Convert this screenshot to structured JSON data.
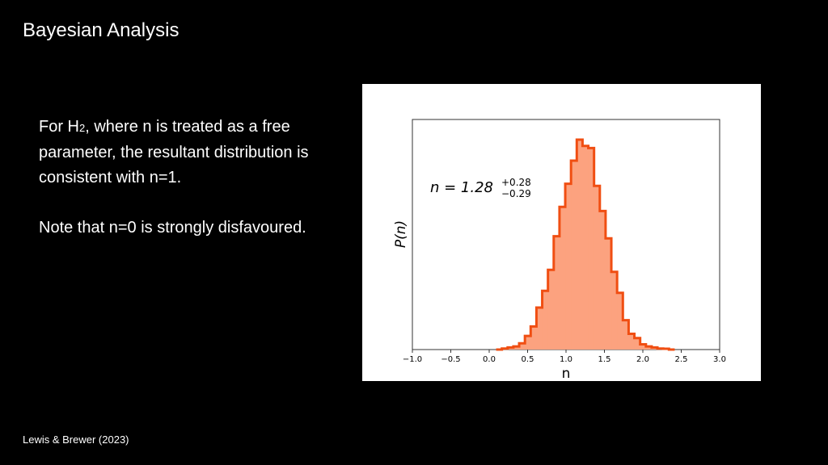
{
  "slide": {
    "title": "Bayesian Analysis",
    "paragraph1_pre": "For H",
    "paragraph1_sub": "2",
    "paragraph1_post": ", where n is treated as a free parameter, the resultant distribution is consistent with n=1.",
    "paragraph2": "Note that n=0 is strongly disfavoured.",
    "citation": "Lewis & Brewer (2023)"
  },
  "colors": {
    "fill": "#FCA27F",
    "stroke": "#F04E12"
  },
  "chart_data": {
    "type": "histogram",
    "xlabel": "n",
    "ylabel": "P(n)",
    "xlim": [
      -1.0,
      3.0
    ],
    "xticks": [
      "−1.0",
      "−0.5",
      "0.0",
      "0.5",
      "1.0",
      "1.5",
      "2.0",
      "2.5",
      "3.0"
    ],
    "xtick_values": [
      -1.0,
      -0.5,
      0.0,
      0.5,
      1.0,
      1.5,
      2.0,
      2.5,
      3.0
    ],
    "annotation": {
      "prefix": "n = 1.28",
      "upper": "+0.28",
      "lower": "−0.29"
    },
    "bin_width": 0.075,
    "bin_starts": [
      0.09,
      0.165,
      0.24,
      0.315,
      0.39,
      0.465,
      0.54,
      0.615,
      0.69,
      0.765,
      0.84,
      0.915,
      0.99,
      1.065,
      1.14,
      1.215,
      1.29,
      1.365,
      1.44,
      1.515,
      1.59,
      1.665,
      1.74,
      1.815,
      1.89,
      1.965,
      2.04,
      2.115,
      2.19,
      2.265,
      2.34
    ],
    "values": [
      0.0,
      0.005,
      0.01,
      0.015,
      0.03,
      0.065,
      0.11,
      0.2,
      0.28,
      0.38,
      0.54,
      0.68,
      0.79,
      0.9,
      1.0,
      0.97,
      0.96,
      0.78,
      0.66,
      0.53,
      0.37,
      0.27,
      0.14,
      0.075,
      0.055,
      0.025,
      0.015,
      0.01,
      0.005,
      0.004,
      0.0
    ]
  }
}
